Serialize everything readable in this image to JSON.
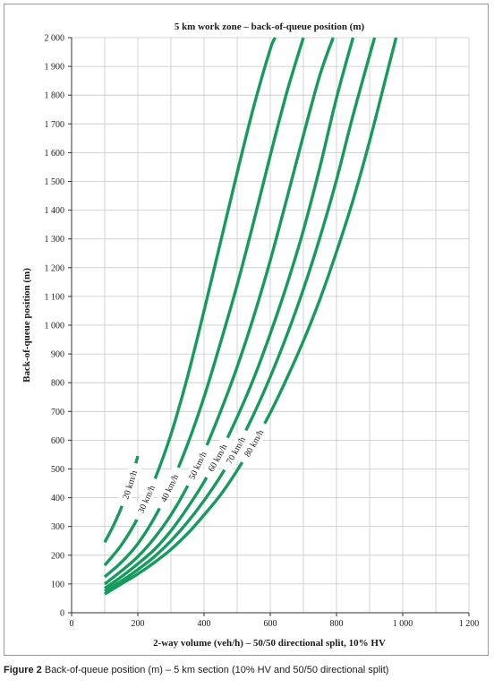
{
  "chart_data": {
    "type": "line",
    "title": "5 km work zone – back-of-queue position (m)",
    "xlabel": "2-way volume (veh/h) – 50/50 directional split, 10% HV",
    "ylabel": "Back-of-queue position (m)",
    "xlim": [
      0,
      1200
    ],
    "ylim": [
      0,
      2000
    ],
    "x_ticks": [
      0,
      200,
      400,
      600,
      800,
      1000,
      1200
    ],
    "x_tick_labels": [
      "0",
      "200",
      "400",
      "600",
      "800",
      "1 000",
      "1 200"
    ],
    "y_ticks": [
      0,
      100,
      200,
      300,
      400,
      500,
      600,
      700,
      800,
      900,
      1000,
      1100,
      1200,
      1300,
      1400,
      1500,
      1600,
      1700,
      1800,
      1900,
      2000
    ],
    "y_tick_labels": [
      "0",
      "100",
      "200",
      "300",
      "400",
      "500",
      "600",
      "700",
      "800",
      "900",
      "1 000",
      "1 100",
      "1 200",
      "1 300",
      "1 400",
      "1 500",
      "1 600",
      "1 700",
      "1 800",
      "1 900",
      "2 000"
    ],
    "grid": true,
    "line_color": "#179a5e",
    "series": [
      {
        "name": "20 km/h",
        "x": [
          100,
          125,
          150,
          175,
          200
        ],
        "y": [
          245,
          300,
          365,
          445,
          545
        ]
      },
      {
        "name": "30 km/h",
        "x": [
          100,
          150,
          200,
          250,
          300,
          350,
          400,
          450,
          500,
          550,
          600,
          615
        ],
        "y": [
          165,
          235,
          330,
          460,
          620,
          820,
          1050,
          1290,
          1530,
          1760,
          1960,
          2000
        ]
      },
      {
        "name": "40 km/h",
        "x": [
          100,
          150,
          200,
          250,
          300,
          350,
          400,
          450,
          500,
          550,
          600,
          650,
          700
        ],
        "y": [
          125,
          175,
          240,
          330,
          445,
          585,
          750,
          940,
          1140,
          1360,
          1590,
          1810,
          2000
        ]
      },
      {
        "name": "50 km/h",
        "x": [
          100,
          150,
          200,
          250,
          300,
          350,
          400,
          450,
          500,
          550,
          600,
          650,
          700,
          750,
          790
        ],
        "y": [
          100,
          145,
          195,
          260,
          340,
          440,
          560,
          700,
          855,
          1030,
          1225,
          1440,
          1660,
          1870,
          2000
        ]
      },
      {
        "name": "60 km/h",
        "x": [
          100,
          150,
          200,
          250,
          300,
          350,
          400,
          450,
          500,
          550,
          600,
          650,
          700,
          750,
          800,
          850
        ],
        "y": [
          85,
          125,
          170,
          220,
          285,
          365,
          455,
          560,
          680,
          815,
          970,
          1140,
          1330,
          1550,
          1790,
          2000
        ]
      },
      {
        "name": "70 km/h",
        "x": [
          100,
          150,
          200,
          250,
          300,
          350,
          400,
          450,
          500,
          550,
          600,
          650,
          700,
          750,
          800,
          850,
          915
        ],
        "y": [
          75,
          110,
          150,
          195,
          250,
          315,
          390,
          475,
          575,
          690,
          820,
          965,
          1125,
          1305,
          1505,
          1730,
          2000
        ]
      },
      {
        "name": "80 km/h",
        "x": [
          100,
          150,
          200,
          250,
          300,
          350,
          400,
          450,
          500,
          550,
          600,
          650,
          700,
          750,
          800,
          850,
          900,
          950,
          980
        ],
        "y": [
          65,
          100,
          135,
          175,
          220,
          275,
          340,
          410,
          495,
          590,
          695,
          815,
          945,
          1090,
          1255,
          1435,
          1640,
          1865,
          2000
        ]
      }
    ],
    "annotations": [
      {
        "text": "20 km/h",
        "series": "20 km/h",
        "at_x": 175
      },
      {
        "text": "30 km/h",
        "series": "30 km/h",
        "at_x": 225
      },
      {
        "text": "40 km/h",
        "series": "40 km/h",
        "at_x": 295
      },
      {
        "text": "50 km/h",
        "series": "50 km/h",
        "at_x": 380
      },
      {
        "text": "60 km/h",
        "series": "60 km/h",
        "at_x": 440
      },
      {
        "text": "70 km/h",
        "series": "70 km/h",
        "at_x": 495
      },
      {
        "text": "80 km/h",
        "series": "80 km/h",
        "at_x": 550
      }
    ]
  },
  "caption": {
    "label": "Figure 2",
    "text": " Back-of-queue position (m) – 5 km section (10% HV and 50/50 directional split)"
  }
}
